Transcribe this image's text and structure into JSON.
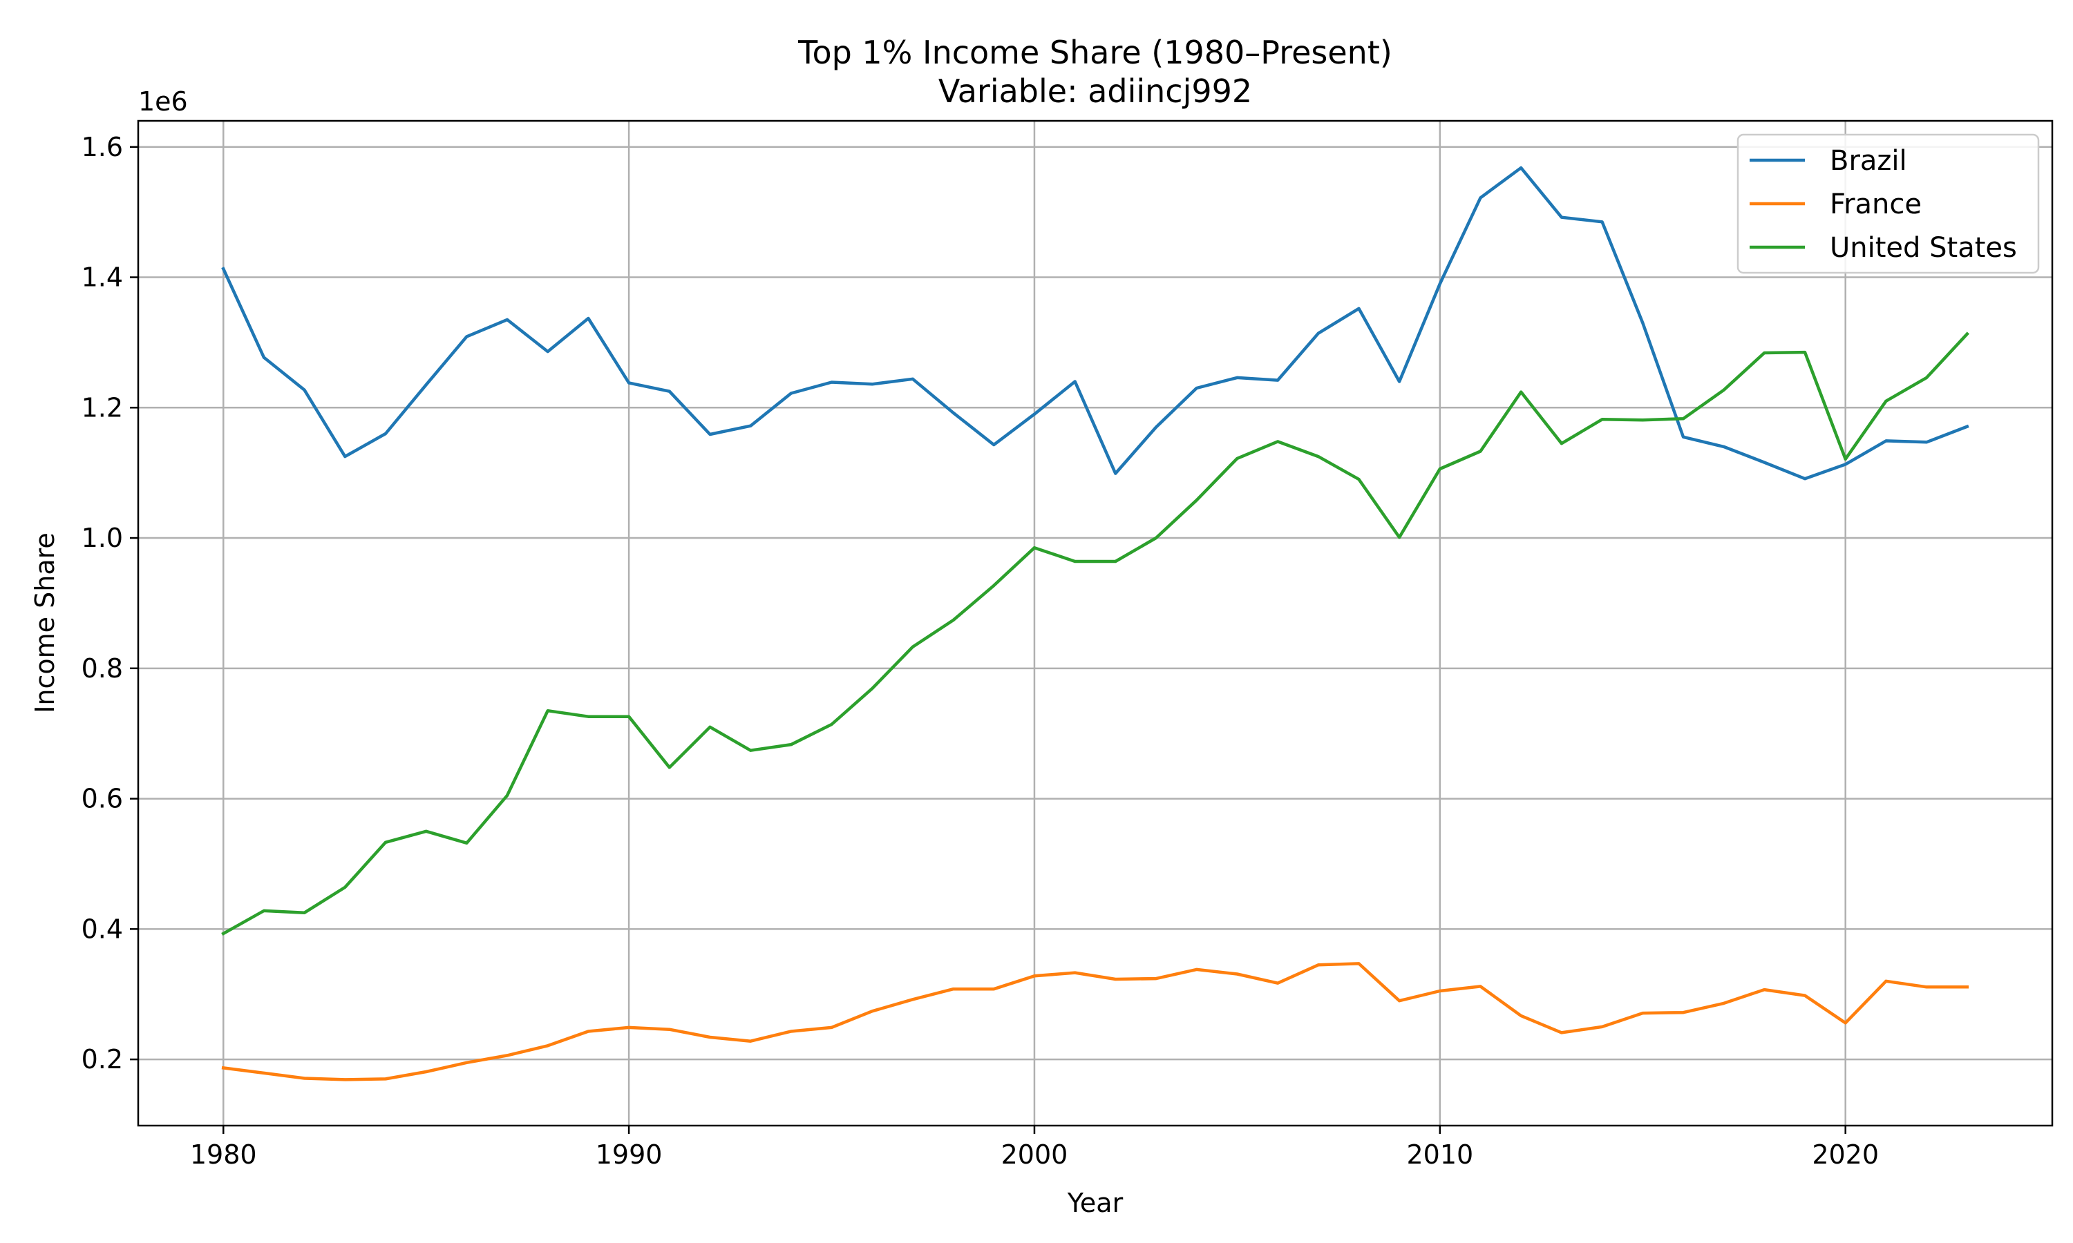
{
  "chart_data": {
    "type": "line",
    "title": "Top 1% Income Share (1980–Present)",
    "subtitle": "Variable: adiincj992",
    "xlabel": "Year",
    "ylabel": "Income Share",
    "y_offset_label": "1e6",
    "xlim": [
      1977.9,
      2025.1
    ],
    "ylim": [
      0.0984,
      1.64
    ],
    "x_ticks": [
      1980,
      1990,
      2000,
      2010,
      2020
    ],
    "y_ticks": [
      0.2,
      0.4,
      0.6,
      0.8,
      1.0,
      1.2,
      1.4,
      1.6
    ],
    "y_tick_labels": [
      "0.2",
      "0.4",
      "0.6",
      "0.8",
      "1.0",
      "1.2",
      "1.4",
      "1.6"
    ],
    "grid": true,
    "legend_position": "top-right",
    "x": [
      1980,
      1981,
      1982,
      1983,
      1984,
      1985,
      1986,
      1987,
      1988,
      1989,
      1990,
      1991,
      1992,
      1993,
      1994,
      1995,
      1996,
      1997,
      1998,
      1999,
      2000,
      2001,
      2002,
      2003,
      2004,
      2005,
      2006,
      2007,
      2008,
      2009,
      2010,
      2011,
      2012,
      2013,
      2014,
      2015,
      2016,
      2017,
      2018,
      2019,
      2020,
      2021,
      2022,
      2023
    ],
    "series": [
      {
        "name": "Brazil",
        "color": "#1f77b4",
        "values": [
          1.413,
          1.277,
          1.227,
          1.125,
          1.16,
          1.235,
          1.309,
          1.335,
          1.286,
          1.337,
          1.238,
          1.225,
          1.159,
          1.172,
          1.222,
          1.239,
          1.236,
          1.244,
          1.192,
          1.143,
          1.19,
          1.24,
          1.099,
          1.17,
          1.23,
          1.246,
          1.242,
          1.314,
          1.352,
          1.24,
          1.39,
          1.522,
          1.568,
          1.492,
          1.485,
          1.33,
          1.155,
          1.14,
          1.116,
          1.091,
          1.113,
          1.149,
          1.147,
          1.171
        ]
      },
      {
        "name": "France",
        "color": "#ff7f0e",
        "values": [
          0.187,
          0.179,
          0.171,
          0.169,
          0.17,
          0.181,
          0.195,
          0.206,
          0.221,
          0.243,
          0.249,
          0.246,
          0.234,
          0.228,
          0.243,
          0.249,
          0.274,
          0.292,
          0.308,
          0.308,
          0.328,
          0.333,
          0.323,
          0.324,
          0.338,
          0.331,
          0.317,
          0.345,
          0.347,
          0.29,
          0.305,
          0.312,
          0.267,
          0.241,
          0.25,
          0.271,
          0.272,
          0.286,
          0.307,
          0.298,
          0.256,
          0.32,
          0.311,
          0.311
        ]
      },
      {
        "name": "United States",
        "color": "#2ca02c",
        "values": [
          0.393,
          0.428,
          0.425,
          0.464,
          0.533,
          0.55,
          0.532,
          0.605,
          0.735,
          0.726,
          0.726,
          0.648,
          0.71,
          0.674,
          0.683,
          0.714,
          0.769,
          0.833,
          0.874,
          0.927,
          0.985,
          0.964,
          0.964,
          1.0,
          1.058,
          1.122,
          1.148,
          1.125,
          1.09,
          1.001,
          1.106,
          1.133,
          1.224,
          1.145,
          1.182,
          1.181,
          1.183,
          1.227,
          1.284,
          1.285,
          1.121,
          1.21,
          1.246,
          1.313
        ]
      }
    ]
  }
}
